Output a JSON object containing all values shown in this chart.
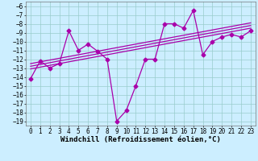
{
  "title": "",
  "xlabel": "Windchill (Refroidissement éolien,°C)",
  "ylabel": "",
  "bg_color": "#cceeff",
  "line_color": "#aa00aa",
  "x": [
    0,
    1,
    2,
    3,
    4,
    5,
    6,
    7,
    8,
    9,
    10,
    11,
    12,
    13,
    14,
    15,
    16,
    17,
    18,
    19,
    20,
    21,
    22,
    23
  ],
  "y_main": [
    -14.2,
    -12.2,
    -13.0,
    -12.5,
    -8.8,
    -11.0,
    -10.3,
    -11.1,
    -12.0,
    -19.0,
    -17.8,
    -15.0,
    -12.0,
    -12.0,
    -8.0,
    -8.0,
    -8.5,
    -6.5,
    -11.5,
    -10.0,
    -9.5,
    -9.2,
    -9.5,
    -8.8
  ],
  "y_reg1": [
    -12.5,
    -12.3,
    -12.1,
    -11.9,
    -11.7,
    -11.5,
    -11.3,
    -11.1,
    -10.9,
    -10.7,
    -10.5,
    -10.3,
    -10.1,
    -9.9,
    -9.7,
    -9.5,
    -9.3,
    -9.1,
    -8.9,
    -8.7,
    -8.5,
    -8.3,
    -8.1,
    -7.9
  ],
  "y_reg2": [
    -12.8,
    -12.6,
    -12.4,
    -12.2,
    -12.0,
    -11.8,
    -11.6,
    -11.4,
    -11.2,
    -11.0,
    -10.8,
    -10.6,
    -10.4,
    -10.2,
    -10.0,
    -9.8,
    -9.6,
    -9.4,
    -9.2,
    -9.0,
    -8.8,
    -8.6,
    -8.4,
    -8.2
  ],
  "y_reg3": [
    -13.1,
    -12.9,
    -12.7,
    -12.5,
    -12.3,
    -12.1,
    -11.9,
    -11.7,
    -11.5,
    -11.3,
    -11.1,
    -10.9,
    -10.7,
    -10.5,
    -10.3,
    -10.1,
    -9.9,
    -9.7,
    -9.5,
    -9.3,
    -9.1,
    -8.9,
    -8.7,
    -8.5
  ],
  "ylim": [
    -19.5,
    -5.5
  ],
  "yticks": [
    -6,
    -7,
    -8,
    -9,
    -10,
    -11,
    -12,
    -13,
    -14,
    -15,
    -16,
    -17,
    -18,
    -19
  ],
  "xticks": [
    0,
    1,
    2,
    3,
    4,
    5,
    6,
    7,
    8,
    9,
    10,
    11,
    12,
    13,
    14,
    15,
    16,
    17,
    18,
    19,
    20,
    21,
    22,
    23
  ],
  "grid_color": "#99cccc",
  "marker": "D",
  "marker_size": 2.5,
  "linewidth": 0.9,
  "xlabel_fontsize": 6.5,
  "tick_fontsize": 5.5
}
